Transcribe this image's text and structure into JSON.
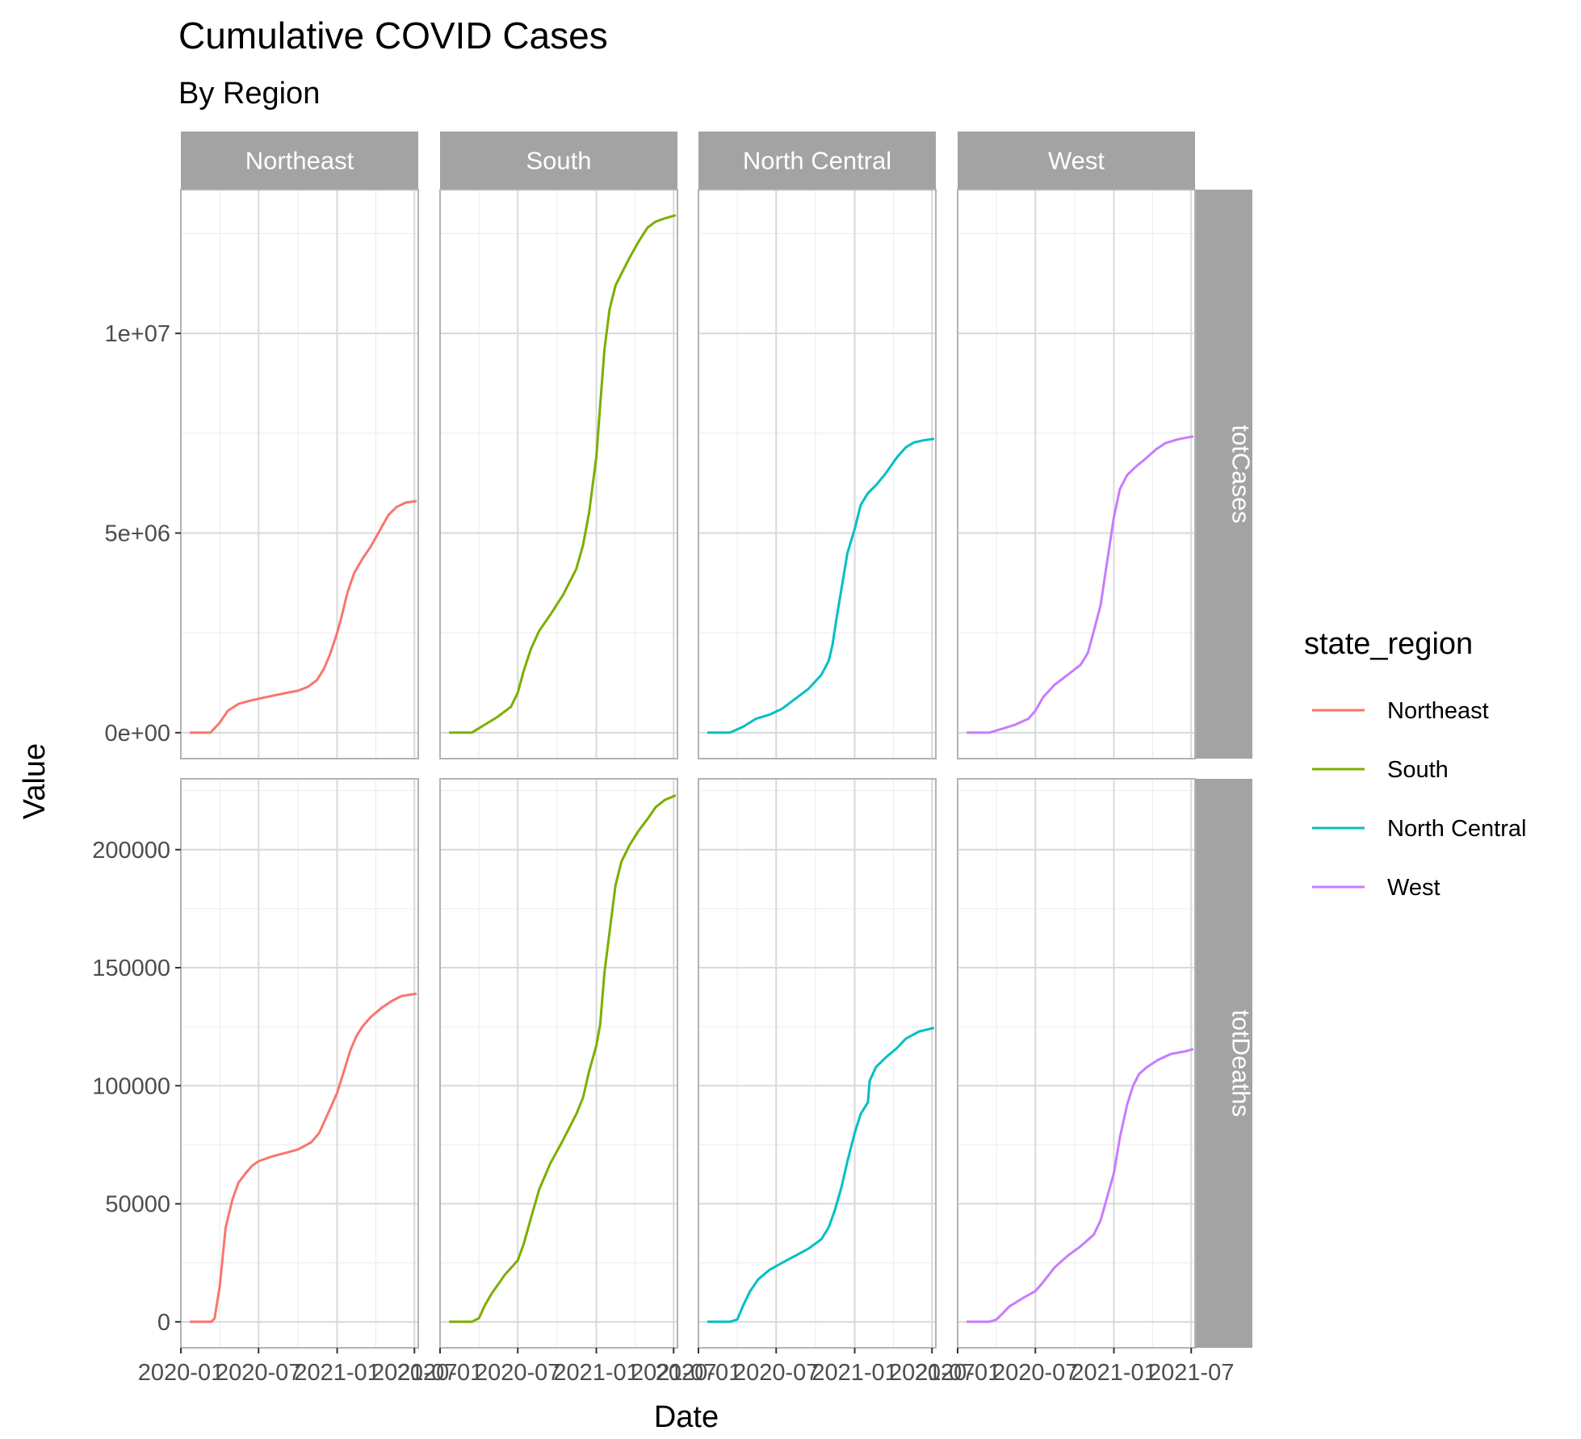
{
  "chart_data": {
    "type": "line",
    "title": "Cumulative COVID Cases",
    "subtitle": "By Region",
    "xlabel": "Date",
    "ylabel": "Value",
    "x_ticks": [
      "2020-01",
      "2020-07",
      "2021-01",
      "2021-07"
    ],
    "x_range": [
      "2020-01-01",
      "2021-07-10"
    ],
    "facet_columns": [
      "Northeast",
      "South",
      "North Central",
      "West"
    ],
    "facet_rows": [
      "totCases",
      "totDeaths"
    ],
    "grid": true,
    "legend": {
      "title": "state_region",
      "position": "right",
      "entries": [
        "Northeast",
        "South",
        "North Central",
        "West"
      ]
    },
    "colors": {
      "Northeast": "#F8766D",
      "South": "#7CAE00",
      "North Central": "#00BFC4",
      "West": "#C77CFF"
    },
    "rows": [
      {
        "name": "totCases",
        "y_ticks": [
          0,
          5000000,
          10000000
        ],
        "y_tick_labels": [
          "0e+00",
          "5e+06",
          "1e+07"
        ],
        "ylim": [
          -650000,
          13600000
        ],
        "series": [
          {
            "name": "Northeast",
            "points": [
              [
                "2020-01-22",
                0
              ],
              [
                "2020-03-10",
                0
              ],
              [
                "2020-04-01",
                250000
              ],
              [
                "2020-04-20",
                550000
              ],
              [
                "2020-05-15",
                720000
              ],
              [
                "2020-06-10",
                800000
              ],
              [
                "2020-07-01",
                850000
              ],
              [
                "2020-08-01",
                920000
              ],
              [
                "2020-09-01",
                990000
              ],
              [
                "2020-10-01",
                1050000
              ],
              [
                "2020-10-25",
                1150000
              ],
              [
                "2020-11-15",
                1320000
              ],
              [
                "2020-12-01",
                1600000
              ],
              [
                "2020-12-15",
                1950000
              ],
              [
                "2021-01-01",
                2500000
              ],
              [
                "2021-01-10",
                2850000
              ],
              [
                "2021-01-25",
                3500000
              ],
              [
                "2021-02-10",
                4000000
              ],
              [
                "2021-03-01",
                4350000
              ],
              [
                "2021-03-20",
                4650000
              ],
              [
                "2021-04-10",
                5050000
              ],
              [
                "2021-05-01",
                5450000
              ],
              [
                "2021-05-20",
                5650000
              ],
              [
                "2021-06-10",
                5760000
              ],
              [
                "2021-07-06",
                5800000
              ]
            ]
          },
          {
            "name": "South",
            "points": [
              [
                "2020-01-22",
                0
              ],
              [
                "2020-03-15",
                0
              ],
              [
                "2020-04-15",
                200000
              ],
              [
                "2020-05-15",
                400000
              ],
              [
                "2020-06-15",
                650000
              ],
              [
                "2020-07-01",
                1000000
              ],
              [
                "2020-07-15",
                1550000
              ],
              [
                "2020-08-01",
                2100000
              ],
              [
                "2020-08-20",
                2550000
              ],
              [
                "2020-09-15",
                2950000
              ],
              [
                "2020-10-15",
                3450000
              ],
              [
                "2020-11-15",
                4100000
              ],
              [
                "2020-12-01",
                4700000
              ],
              [
                "2020-12-15",
                5500000
              ],
              [
                "2021-01-01",
                6900000
              ],
              [
                "2021-01-10",
                8200000
              ],
              [
                "2021-01-20",
                9600000
              ],
              [
                "2021-02-01",
                10600000
              ],
              [
                "2021-02-15",
                11200000
              ],
              [
                "2021-03-01",
                11500000
              ],
              [
                "2021-03-20",
                11900000
              ],
              [
                "2021-04-10",
                12300000
              ],
              [
                "2021-05-01",
                12650000
              ],
              [
                "2021-05-20",
                12800000
              ],
              [
                "2021-06-10",
                12880000
              ],
              [
                "2021-07-06",
                12960000
              ]
            ]
          },
          {
            "name": "North Central",
            "points": [
              [
                "2020-01-22",
                0
              ],
              [
                "2020-03-15",
                0
              ],
              [
                "2020-04-15",
                150000
              ],
              [
                "2020-05-15",
                350000
              ],
              [
                "2020-06-15",
                450000
              ],
              [
                "2020-07-15",
                600000
              ],
              [
                "2020-08-15",
                850000
              ],
              [
                "2020-09-15",
                1100000
              ],
              [
                "2020-10-15",
                1450000
              ],
              [
                "2020-11-01",
                1800000
              ],
              [
                "2020-11-10",
                2200000
              ],
              [
                "2020-11-20",
                2900000
              ],
              [
                "2020-12-01",
                3600000
              ],
              [
                "2020-12-15",
                4500000
              ],
              [
                "2021-01-01",
                5100000
              ],
              [
                "2021-01-15",
                5700000
              ],
              [
                "2021-02-01",
                6000000
              ],
              [
                "2021-02-20",
                6200000
              ],
              [
                "2021-03-15",
                6500000
              ],
              [
                "2021-04-10",
                6900000
              ],
              [
                "2021-05-01",
                7150000
              ],
              [
                "2021-05-20",
                7270000
              ],
              [
                "2021-06-10",
                7320000
              ],
              [
                "2021-07-06",
                7360000
              ]
            ]
          },
          {
            "name": "West",
            "points": [
              [
                "2020-01-22",
                0
              ],
              [
                "2020-03-15",
                0
              ],
              [
                "2020-04-15",
                100000
              ],
              [
                "2020-05-15",
                200000
              ],
              [
                "2020-06-15",
                350000
              ],
              [
                "2020-07-01",
                550000
              ],
              [
                "2020-07-20",
                900000
              ],
              [
                "2020-08-15",
                1200000
              ],
              [
                "2020-09-15",
                1450000
              ],
              [
                "2020-10-15",
                1700000
              ],
              [
                "2020-11-01",
                2000000
              ],
              [
                "2020-11-15",
                2550000
              ],
              [
                "2020-12-01",
                3200000
              ],
              [
                "2020-12-15",
                4200000
              ],
              [
                "2021-01-01",
                5400000
              ],
              [
                "2021-01-15",
                6100000
              ],
              [
                "2021-02-01",
                6450000
              ],
              [
                "2021-02-20",
                6650000
              ],
              [
                "2021-03-15",
                6850000
              ],
              [
                "2021-04-10",
                7100000
              ],
              [
                "2021-05-01",
                7250000
              ],
              [
                "2021-06-01",
                7350000
              ],
              [
                "2021-07-06",
                7420000
              ]
            ]
          }
        ]
      },
      {
        "name": "totDeaths",
        "y_ticks": [
          0,
          50000,
          100000,
          150000,
          200000
        ],
        "y_tick_labels": [
          "0",
          "50000",
          "100000",
          "150000",
          "200000"
        ],
        "ylim": [
          -11000,
          230000
        ],
        "series": [
          {
            "name": "Northeast",
            "points": [
              [
                "2020-01-22",
                0
              ],
              [
                "2020-03-12",
                0
              ],
              [
                "2020-03-20",
                1500
              ],
              [
                "2020-04-01",
                15000
              ],
              [
                "2020-04-15",
                40000
              ],
              [
                "2020-05-01",
                52000
              ],
              [
                "2020-05-15",
                59000
              ],
              [
                "2020-06-01",
                63000
              ],
              [
                "2020-06-15",
                66000
              ],
              [
                "2020-07-01",
                68000
              ],
              [
                "2020-08-01",
                70000
              ],
              [
                "2020-09-01",
                71500
              ],
              [
                "2020-10-01",
                73000
              ],
              [
                "2020-11-01",
                76000
              ],
              [
                "2020-11-20",
                80000
              ],
              [
                "2020-12-10",
                88000
              ],
              [
                "2021-01-01",
                97000
              ],
              [
                "2021-01-15",
                105000
              ],
              [
                "2021-02-01",
                115000
              ],
              [
                "2021-02-15",
                121000
              ],
              [
                "2021-03-01",
                125000
              ],
              [
                "2021-03-20",
                129000
              ],
              [
                "2021-04-15",
                133000
              ],
              [
                "2021-05-10",
                136000
              ],
              [
                "2021-06-01",
                138000
              ],
              [
                "2021-07-06",
                139000
              ]
            ]
          },
          {
            "name": "South",
            "points": [
              [
                "2020-01-22",
                0
              ],
              [
                "2020-03-15",
                0
              ],
              [
                "2020-04-01",
                1500
              ],
              [
                "2020-04-15",
                7000
              ],
              [
                "2020-05-01",
                12000
              ],
              [
                "2020-06-01",
                20000
              ],
              [
                "2020-07-01",
                26000
              ],
              [
                "2020-07-15",
                33000
              ],
              [
                "2020-08-01",
                44000
              ],
              [
                "2020-08-20",
                56000
              ],
              [
                "2020-09-15",
                67000
              ],
              [
                "2020-10-15",
                77000
              ],
              [
                "2020-11-15",
                88000
              ],
              [
                "2020-12-01",
                95000
              ],
              [
                "2020-12-15",
                106000
              ],
              [
                "2021-01-01",
                117000
              ],
              [
                "2021-01-10",
                126000
              ],
              [
                "2021-01-20",
                148000
              ],
              [
                "2021-02-01",
                165000
              ],
              [
                "2021-02-15",
                185000
              ],
              [
                "2021-03-01",
                195000
              ],
              [
                "2021-03-20",
                202000
              ],
              [
                "2021-04-10",
                208000
              ],
              [
                "2021-05-01",
                213000
              ],
              [
                "2021-05-20",
                218000
              ],
              [
                "2021-06-10",
                221000
              ],
              [
                "2021-07-06",
                223000
              ]
            ]
          },
          {
            "name": "North Central",
            "points": [
              [
                "2020-01-22",
                0
              ],
              [
                "2020-03-15",
                0
              ],
              [
                "2020-04-01",
                1000
              ],
              [
                "2020-04-15",
                7000
              ],
              [
                "2020-05-01",
                13000
              ],
              [
                "2020-05-20",
                18000
              ],
              [
                "2020-06-15",
                22000
              ],
              [
                "2020-07-15",
                25000
              ],
              [
                "2020-08-15",
                28000
              ],
              [
                "2020-09-15",
                31000
              ],
              [
                "2020-10-15",
                35000
              ],
              [
                "2020-11-01",
                40000
              ],
              [
                "2020-11-15",
                47000
              ],
              [
                "2020-12-01",
                57000
              ],
              [
                "2020-12-15",
                68000
              ],
              [
                "2021-01-01",
                80000
              ],
              [
                "2021-01-15",
                88000
              ],
              [
                "2021-02-01",
                93000
              ],
              [
                "2021-02-05",
                102000
              ],
              [
                "2021-02-20",
                108000
              ],
              [
                "2021-03-15",
                112000
              ],
              [
                "2021-04-10",
                116000
              ],
              [
                "2021-05-01",
                120000
              ],
              [
                "2021-06-01",
                123000
              ],
              [
                "2021-07-06",
                124500
              ]
            ]
          },
          {
            "name": "West",
            "points": [
              [
                "2020-01-22",
                0
              ],
              [
                "2020-03-15",
                0
              ],
              [
                "2020-04-01",
                1000
              ],
              [
                "2020-04-15",
                3500
              ],
              [
                "2020-05-01",
                6500
              ],
              [
                "2020-06-01",
                10000
              ],
              [
                "2020-07-01",
                13000
              ],
              [
                "2020-07-20",
                17000
              ],
              [
                "2020-08-15",
                23000
              ],
              [
                "2020-09-15",
                28000
              ],
              [
                "2020-10-15",
                32000
              ],
              [
                "2020-11-15",
                37000
              ],
              [
                "2020-12-01",
                43000
              ],
              [
                "2020-12-15",
                52000
              ],
              [
                "2021-01-01",
                63000
              ],
              [
                "2021-01-15",
                78000
              ],
              [
                "2021-02-01",
                92000
              ],
              [
                "2021-02-15",
                100000
              ],
              [
                "2021-03-01",
                105000
              ],
              [
                "2021-03-20",
                108000
              ],
              [
                "2021-04-15",
                111000
              ],
              [
                "2021-05-15",
                113500
              ],
              [
                "2021-06-15",
                114500
              ],
              [
                "2021-07-06",
                115500
              ]
            ]
          }
        ]
      }
    ]
  }
}
